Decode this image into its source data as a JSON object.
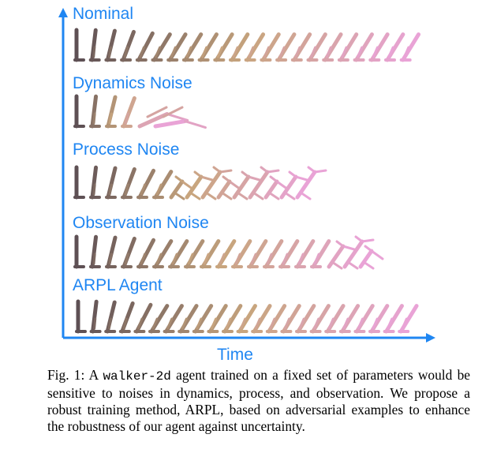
{
  "figure": {
    "rows": [
      {
        "label": "Nominal",
        "frames": 22,
        "failure": "none"
      },
      {
        "label": "Dynamics Noise",
        "frames": 6,
        "failure": "early-fall"
      },
      {
        "label": "Process Noise",
        "frames": 15,
        "failure": "tangle"
      },
      {
        "label": "Observation Noise",
        "frames": 19,
        "failure": "late-fall"
      },
      {
        "label": "ARPL Agent",
        "frames": 23,
        "failure": "none"
      }
    ],
    "x_axis_label": "Time",
    "colors": {
      "axis": "#1f86f2",
      "walker_start": "#5e5054",
      "walker_mid": "#c8a57e",
      "walker_end": "#e9a3d6"
    }
  },
  "caption": {
    "prefix": "Fig. 1: A ",
    "code": "walker-2d",
    "rest": " agent trained on a fixed set of parameters would be sensitive to noises in dynamics, process, and observation. We propose a robust training method, ARPL, based on adversarial examples to enhance the robustness of our agent against uncertainty."
  }
}
